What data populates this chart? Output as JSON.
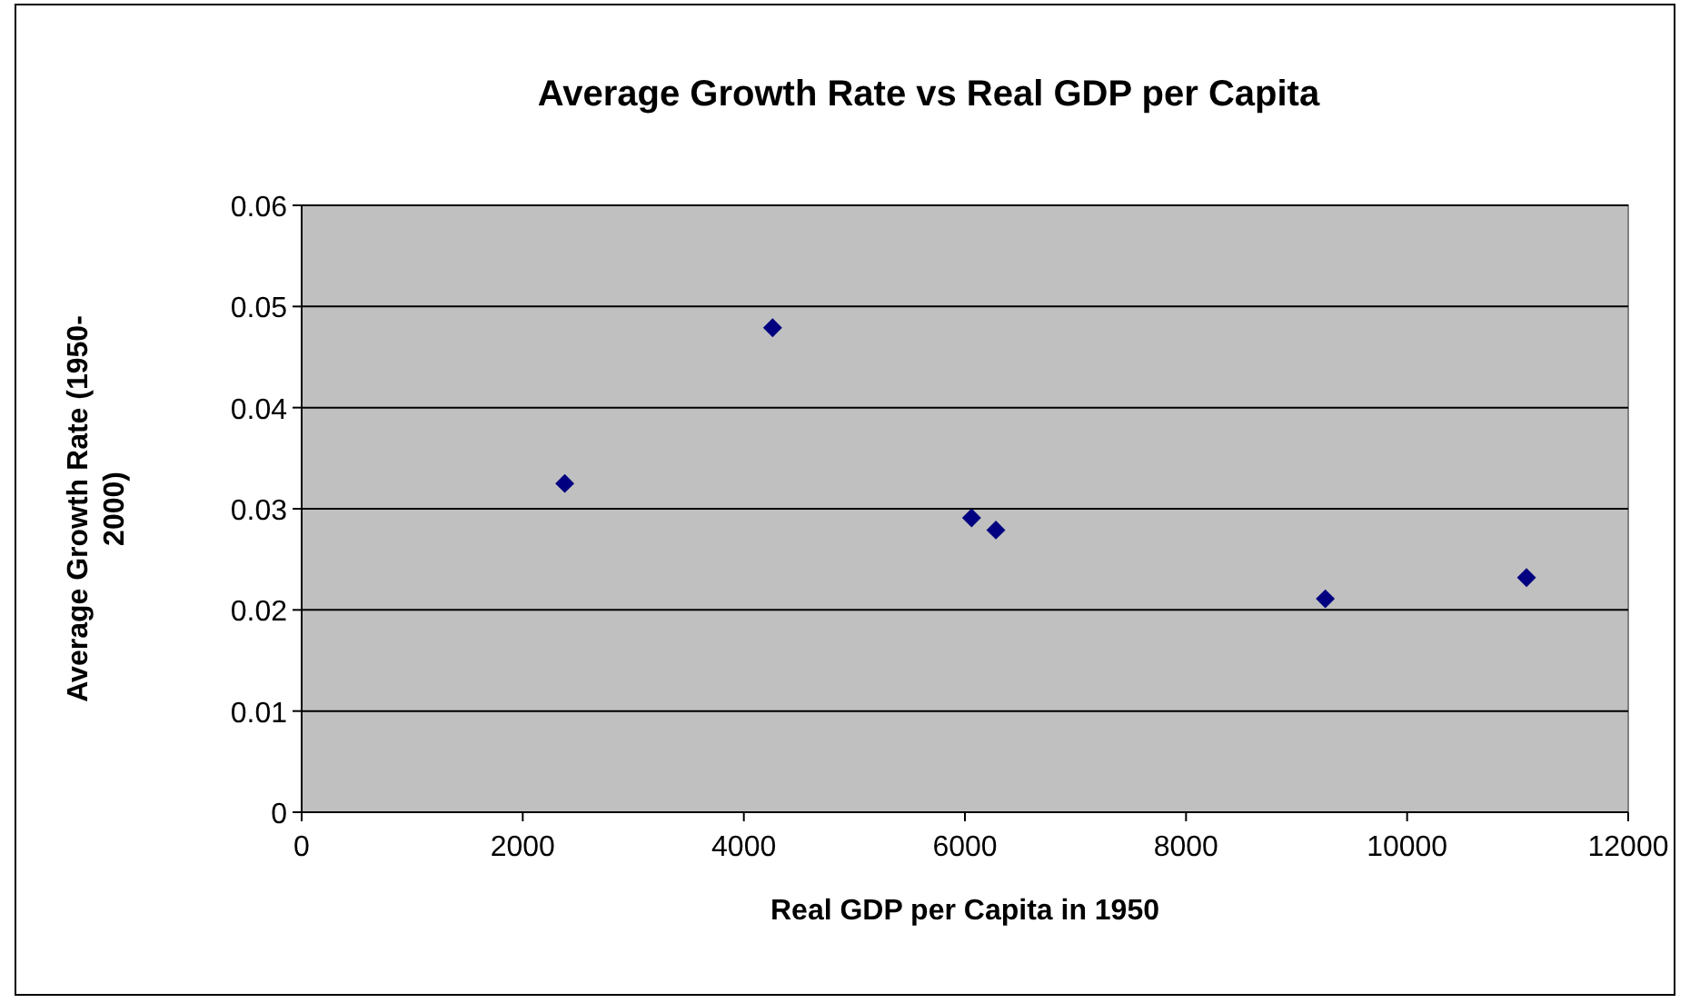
{
  "chart_data": {
    "type": "scatter",
    "title": "Average Growth Rate vs Real GDP per Capita",
    "xlabel": "Real GDP per Capita in 1950",
    "ylabel": "Average Growth Rate (1950-2000)",
    "series": [
      {
        "color": "#000080",
        "x": [
          2380,
          4260,
          6060,
          6280,
          9260,
          11080
        ],
        "values": [
          0.0325,
          0.0479,
          0.0291,
          0.0279,
          0.0211,
          0.0232
        ]
      }
    ],
    "xlim": [
      0,
      12000
    ],
    "xticks": [
      0,
      2000,
      4000,
      6000,
      8000,
      10000,
      12000
    ],
    "ylim": [
      0,
      0.06
    ],
    "yticks": [
      0,
      0.01,
      0.02,
      0.03,
      0.04,
      0.05,
      0.06
    ],
    "grid": "y",
    "marker": "diamond"
  }
}
